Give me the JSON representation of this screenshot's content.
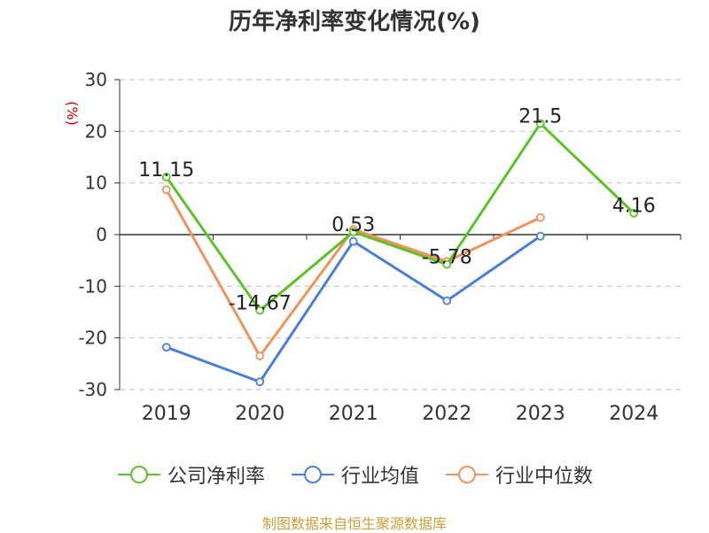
{
  "title": "历年净利率变化情况(%)",
  "source": "制图数据来自恒生聚源数据库",
  "chart_data": {
    "type": "line",
    "title": "历年净利率变化情况(%)",
    "ylabel": "(%)",
    "categories": [
      "2019",
      "2020",
      "2021",
      "2022",
      "2023",
      "2024"
    ],
    "ylim": [
      -30,
      30
    ],
    "yticks": [
      30,
      20,
      10,
      0,
      -10,
      -20,
      -30
    ],
    "grid": true,
    "legend_position": "bottom",
    "series": [
      {
        "name": "公司净利率",
        "color": "#5cc228",
        "values": [
          11.15,
          -14.67,
          0.53,
          -5.78,
          21.5,
          4.16
        ],
        "labels": [
          "11.15",
          "-14.67",
          "0.53",
          "-5.78",
          "21.5",
          "4.16"
        ]
      },
      {
        "name": "行业均值",
        "color": "#4a7fd6",
        "values": [
          -21.8,
          -28.5,
          -1.3,
          -12.8,
          -0.3,
          null
        ]
      },
      {
        "name": "行业中位数",
        "color": "#f2935c",
        "values": [
          8.7,
          -23.5,
          1.0,
          -5.2,
          3.3,
          null
        ]
      }
    ]
  }
}
